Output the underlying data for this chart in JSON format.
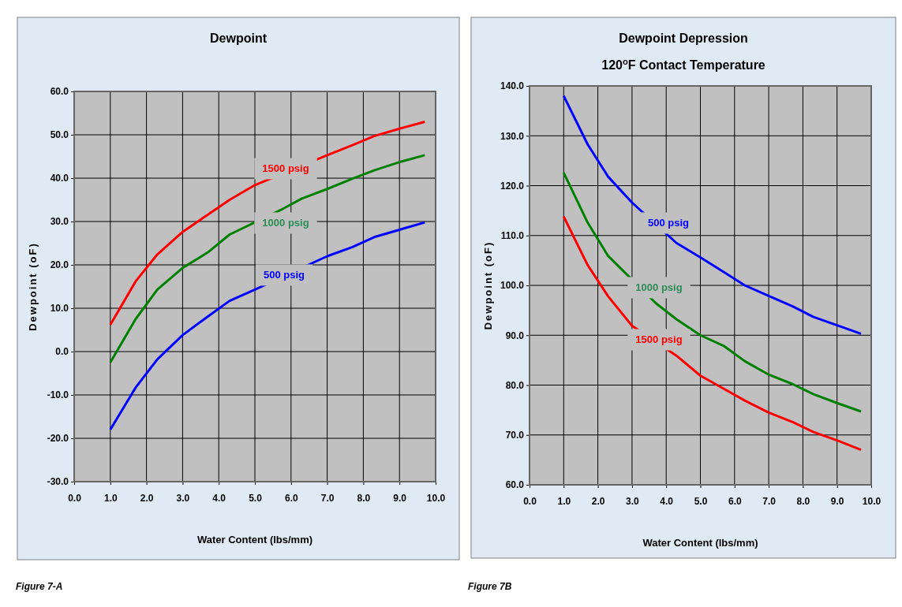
{
  "chart_data": [
    {
      "type": "line",
      "title": "Dewpoint",
      "xlabel": "Water Content (lbs/mm)",
      "ylabel": "Dewpoint (oF)",
      "grid": true,
      "marker": "none",
      "line_style": "solid",
      "xlim": [
        0,
        10
      ],
      "ylim": [
        -30,
        60
      ],
      "xticks": [
        {
          "value": 0,
          "label": "0.0"
        },
        {
          "value": 1,
          "label": "1.0"
        },
        {
          "value": 2,
          "label": "2.0"
        },
        {
          "value": 3,
          "label": "3.0"
        },
        {
          "value": 4,
          "label": "4.0"
        },
        {
          "value": 5,
          "label": "5.0"
        },
        {
          "value": 6,
          "label": "6.0"
        },
        {
          "value": 7,
          "label": "7.0"
        },
        {
          "value": 8,
          "label": "8.0"
        },
        {
          "value": 9,
          "label": "9.0"
        },
        {
          "value": 10,
          "label": "10.0"
        }
      ],
      "yticks": [
        {
          "value": -30,
          "label": "-30.0"
        },
        {
          "value": -20,
          "label": "-20.0"
        },
        {
          "value": -10,
          "label": "-10.0"
        },
        {
          "value": 0,
          "label": "0.0"
        },
        {
          "value": 10,
          "label": "10.0"
        },
        {
          "value": 20,
          "label": "20.0"
        },
        {
          "value": 30,
          "label": "30.0"
        },
        {
          "value": 40,
          "label": "40.0"
        },
        {
          "value": 50,
          "label": "50.0"
        },
        {
          "value": 60,
          "label": "60.0"
        }
      ],
      "series": [
        {
          "name": "1500 psig",
          "color": "#ff0000",
          "x": [
            1.0,
            1.7,
            2.3,
            3.0,
            3.7,
            4.3,
            5.0,
            7.0,
            7.7,
            8.3,
            9.0,
            9.7
          ],
          "values": [
            6.2,
            16.2,
            22.4,
            27.6,
            31.6,
            35.0,
            38.4,
            45.3,
            47.6,
            49.7,
            51.4,
            53.0
          ]
        },
        {
          "name": "1000 psig",
          "color": "#008000",
          "x": [
            1.0,
            1.7,
            2.3,
            3.0,
            3.7,
            4.3,
            5.7,
            6.3,
            7.0,
            7.7,
            8.3,
            9.0,
            9.7
          ],
          "values": [
            -2.5,
            7.5,
            14.3,
            19.3,
            22.9,
            27.0,
            32.6,
            35.3,
            37.5,
            39.9,
            41.8,
            43.7,
            45.3
          ]
        },
        {
          "name": "500 psig",
          "color": "#0000ff",
          "x": [
            1.0,
            1.7,
            2.3,
            3.0,
            3.7,
            4.3,
            5.0,
            7.0,
            7.7,
            8.3,
            9.0,
            9.7
          ],
          "values": [
            -18.0,
            -8.3,
            -1.8,
            3.8,
            8.1,
            11.7,
            14.3,
            22.0,
            24.1,
            26.4,
            28.1,
            29.8
          ]
        }
      ],
      "annotations": [
        "Figure 7-A"
      ]
    },
    {
      "type": "line",
      "title": "Dewpoint Depression",
      "subtitle": "120$^{o}$F Contact Temperature",
      "xlabel": "Water Content (lbs/mm)",
      "ylabel": "Dewpoint (oF)",
      "grid": true,
      "marker": "none",
      "line_style": "solid",
      "xlim": [
        0,
        10
      ],
      "ylim": [
        60,
        140
      ],
      "xticks": [
        {
          "value": 0,
          "label": "0.0"
        },
        {
          "value": 1,
          "label": "1.0"
        },
        {
          "value": 2,
          "label": "2.0"
        },
        {
          "value": 3,
          "label": "3.0"
        },
        {
          "value": 4,
          "label": "4.0"
        },
        {
          "value": 5,
          "label": "5.0"
        },
        {
          "value": 6,
          "label": "6.0"
        },
        {
          "value": 7,
          "label": "7.0"
        },
        {
          "value": 8,
          "label": "8.0"
        },
        {
          "value": 9,
          "label": "9.0"
        },
        {
          "value": 10,
          "label": "10.0"
        }
      ],
      "yticks": [
        {
          "value": 60,
          "label": "60.0"
        },
        {
          "value": 70,
          "label": "70.0"
        },
        {
          "value": 80,
          "label": "80.0"
        },
        {
          "value": 90,
          "label": "90.0"
        },
        {
          "value": 100,
          "label": "100.0"
        },
        {
          "value": 110,
          "label": "110.0"
        },
        {
          "value": 120,
          "label": "120.0"
        },
        {
          "value": 130,
          "label": "130.0"
        },
        {
          "value": 140,
          "label": "140.0"
        }
      ],
      "series": [
        {
          "name": "500 psig",
          "color": "#0000ff",
          "x": [
            1.0,
            1.7,
            2.3,
            3.0,
            4.3,
            5.0,
            5.7,
            6.3,
            7.0,
            7.7,
            8.3,
            9.0,
            9.7
          ],
          "values": [
            138.0,
            128.3,
            121.8,
            116.6,
            108.5,
            105.6,
            102.6,
            100.0,
            97.9,
            95.8,
            93.7,
            92.0,
            90.3
          ]
        },
        {
          "name": "1000 psig",
          "color": "#008000",
          "x": [
            1.0,
            1.7,
            2.3,
            3.7,
            4.3,
            5.0,
            5.7,
            6.3,
            7.0,
            7.7,
            8.3,
            9.0,
            9.7
          ],
          "values": [
            122.6,
            112.6,
            105.9,
            96.4,
            93.2,
            90.0,
            87.8,
            84.8,
            82.1,
            80.2,
            78.2,
            76.4,
            74.7
          ]
        },
        {
          "name": "1500 psig",
          "color": "#ff0000",
          "x": [
            1.0,
            1.7,
            2.3,
            3.0,
            4.3,
            5.0,
            5.7,
            6.3,
            7.0,
            7.7,
            8.3,
            9.0,
            9.7
          ],
          "values": [
            113.8,
            104.1,
            97.8,
            91.9,
            85.9,
            81.9,
            79.2,
            76.9,
            74.5,
            72.6,
            70.6,
            68.9,
            67.0
          ]
        }
      ],
      "annotations": [
        "Figure 7B"
      ]
    }
  ]
}
